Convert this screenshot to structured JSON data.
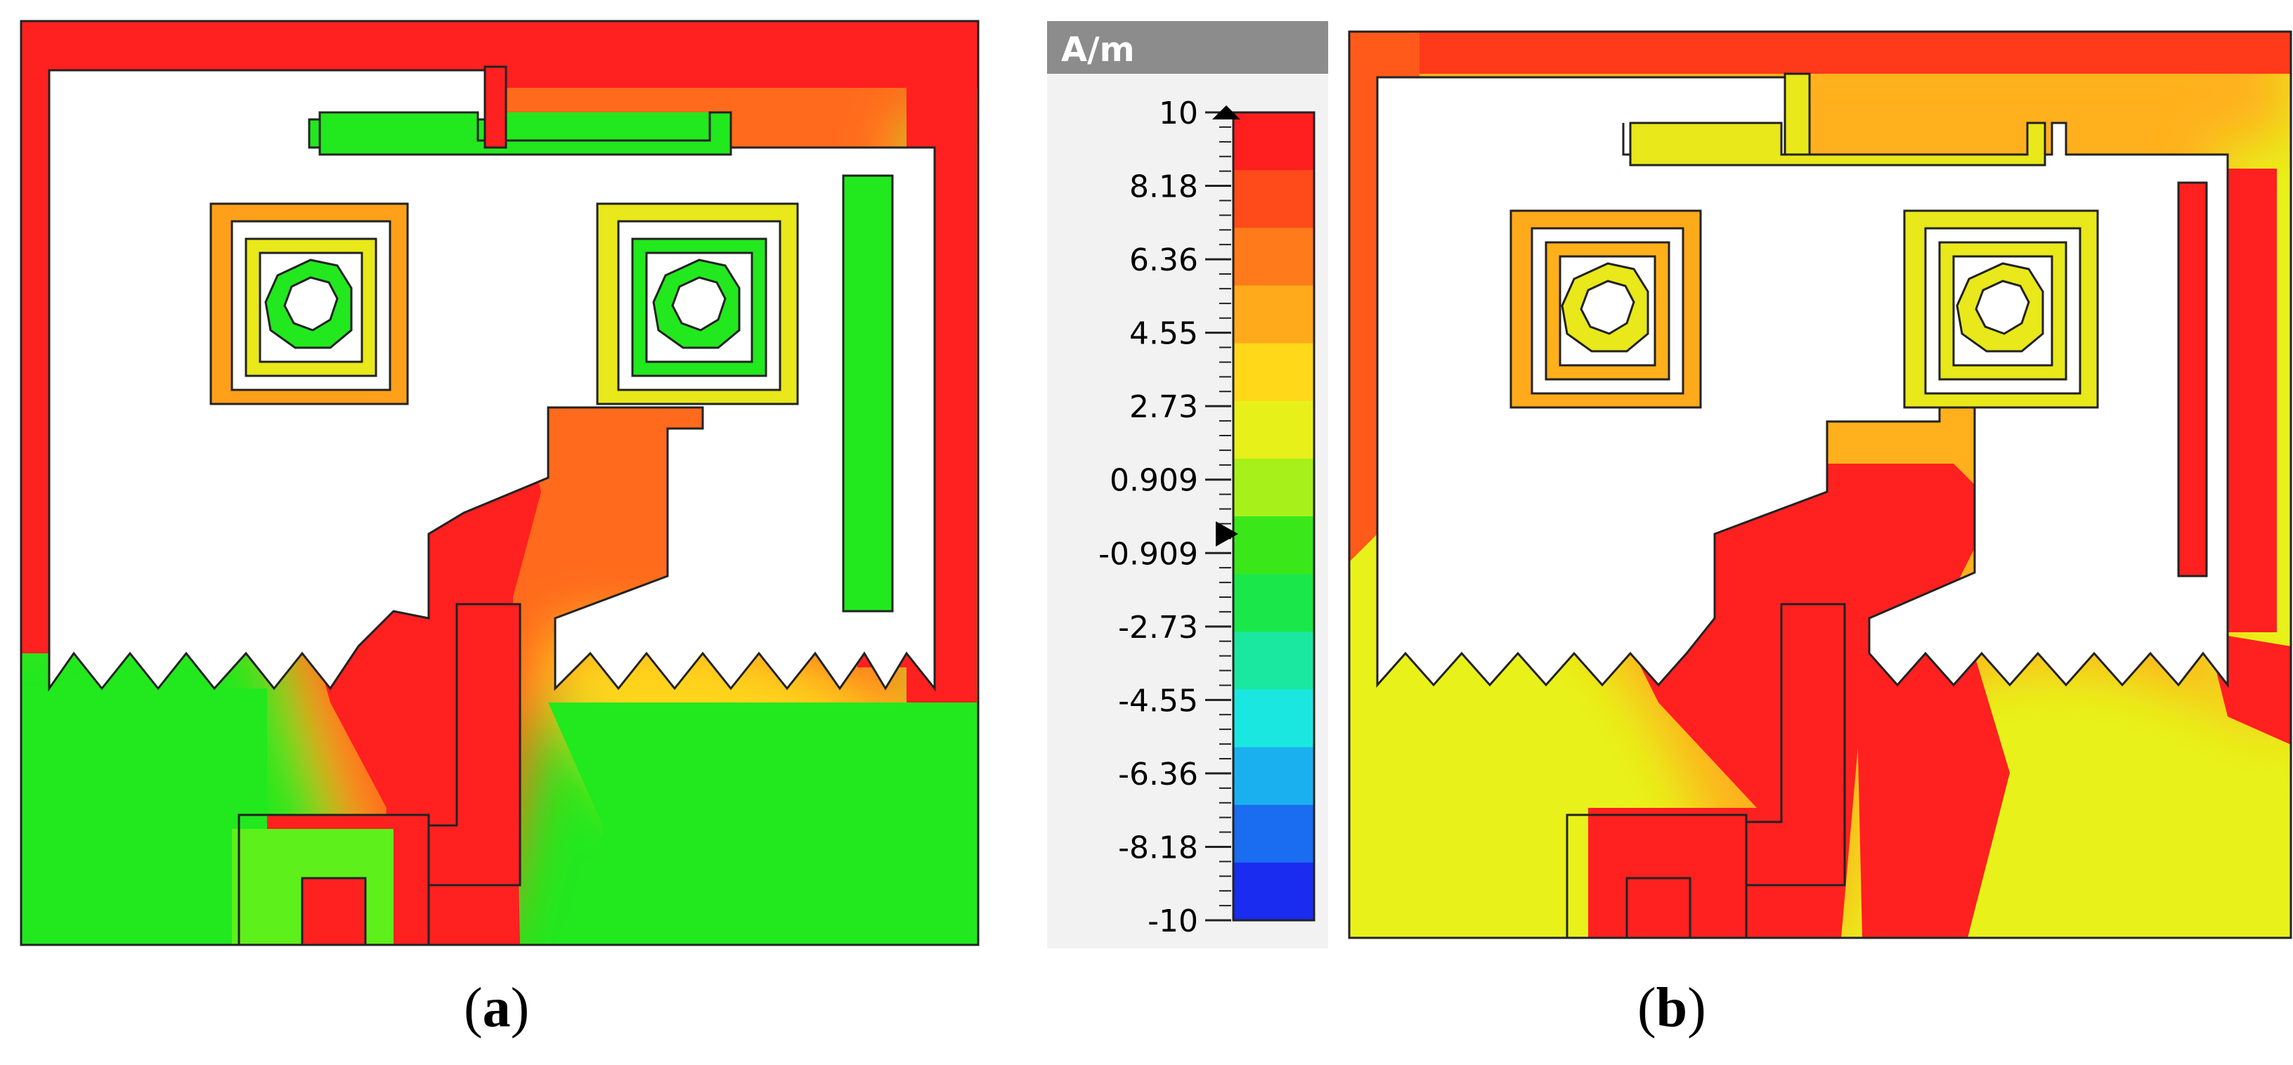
{
  "figure": {
    "panels": [
      {
        "id": "a",
        "caption_open": "(",
        "caption_letter": "a",
        "caption_close": ")"
      },
      {
        "id": "b",
        "caption_open": "(",
        "caption_letter": "b",
        "caption_close": ")"
      }
    ]
  },
  "colorbar": {
    "unit": "A/m",
    "ticks": [
      "10",
      "8.18",
      "6.36",
      "4.55",
      "2.73",
      "0.909",
      "-0.909",
      "-2.73",
      "-4.55",
      "-6.36",
      "-8.18",
      "-10"
    ],
    "colors": [
      "#ff1f1f",
      "#ff4a1a",
      "#ff7a1a",
      "#ffaa1a",
      "#ffd81a",
      "#e8f01a",
      "#a8f01a",
      "#3ae81a",
      "#1ae84a",
      "#1ae8a0",
      "#1ae8e0",
      "#1ab0f0",
      "#1a6cf0",
      "#1a2cf0"
    ]
  },
  "colors": {
    "red": "#ff1f1f",
    "green": "#1ee61e",
    "yellow": "#e6f21a",
    "orange": "#ff8a1a",
    "background": "#ffffff",
    "header": "#8c8c8c"
  }
}
